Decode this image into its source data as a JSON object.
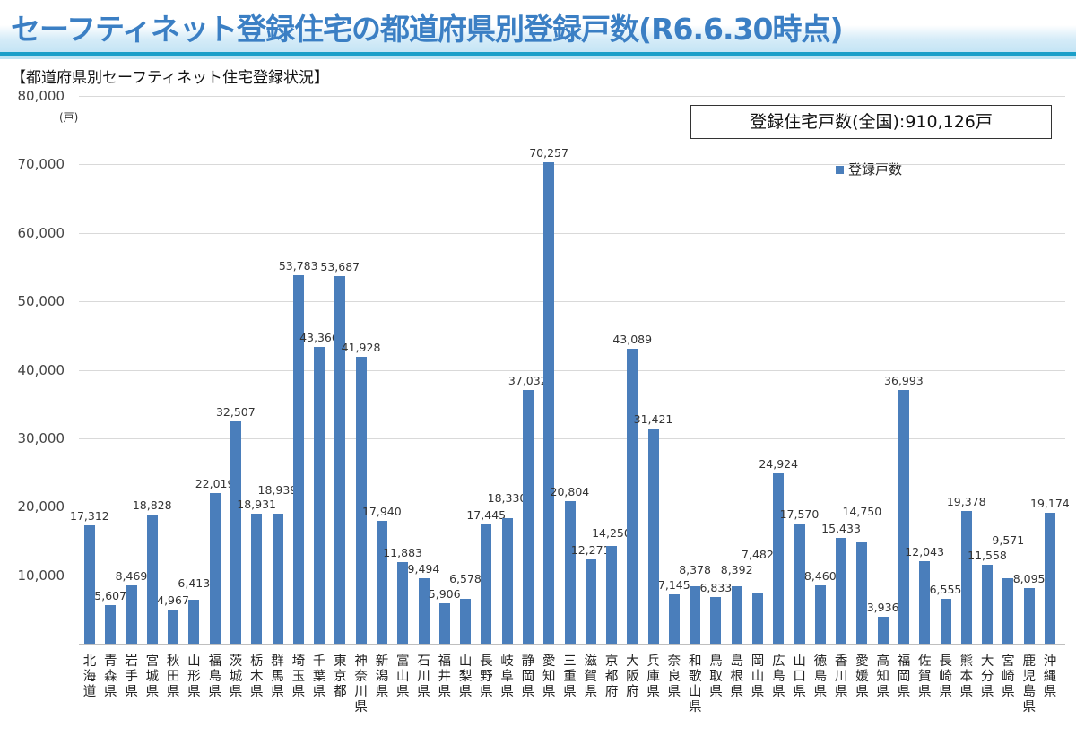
{
  "header": {
    "title": "セーフティネット登録住宅の都道府県別登録戸数(R6.6.30時点)",
    "subtitle": "【都道府県別セーフティネット住宅登録状況】"
  },
  "total_box": "登録住宅戸数(全国):910,126戸",
  "chart_data": {
    "type": "bar",
    "title": "",
    "ylabel": "(戸)",
    "ylim": [
      0,
      80000
    ],
    "yticks": [
      "80,000",
      "70,000",
      "60,000",
      "50,000",
      "40,000",
      "30,000",
      "20,000",
      "10,000"
    ],
    "ytick_values": [
      80000,
      70000,
      60000,
      50000,
      40000,
      30000,
      20000,
      10000
    ],
    "grid": true,
    "legend": {
      "position": "top-right",
      "entries": [
        "登録戸数"
      ]
    },
    "color": "#4a7ebb",
    "categories": [
      "北海道",
      "青森県",
      "岩手県",
      "宮城県",
      "秋田県",
      "山形県",
      "福島県",
      "茨城県",
      "栃木県",
      "群馬県",
      "埼玉県",
      "千葉県",
      "東京都",
      "神奈川県",
      "新潟県",
      "富山県",
      "石川県",
      "福井県",
      "山梨県",
      "長野県",
      "岐阜県",
      "静岡県",
      "愛知県",
      "三重県",
      "滋賀県",
      "京都府",
      "大阪府",
      "兵庫県",
      "奈良県",
      "和歌山県",
      "鳥取県",
      "島根県",
      "岡山県",
      "広島県",
      "山口県",
      "徳島県",
      "香川県",
      "愛媛県",
      "高知県",
      "福岡県",
      "佐賀県",
      "長崎県",
      "熊本県",
      "大分県",
      "宮崎県",
      "鹿児島県",
      "沖縄県"
    ],
    "series": [
      {
        "name": "登録戸数",
        "values": [
          17312,
          5607,
          8469,
          18828,
          4967,
          6413,
          22019,
          32507,
          18931,
          18939,
          53783,
          43366,
          53687,
          41928,
          17940,
          11883,
          9494,
          5906,
          6578,
          17445,
          18330,
          37032,
          70257,
          20804,
          12271,
          14250,
          43089,
          31421,
          7145,
          8378,
          6833,
          8392,
          7482,
          24924,
          17570,
          8460,
          15433,
          14750,
          3936,
          36993,
          12043,
          6555,
          19378,
          11558,
          9571,
          8095,
          19174
        ]
      }
    ],
    "data_labels": [
      "17,312",
      "5,607",
      "8,469",
      "18,828",
      "4,967",
      "6,413",
      "22,019",
      "32,507",
      "18,931",
      "18,939",
      "53,783",
      "43,366",
      "53,687",
      "41,928",
      "17,940",
      "11,883",
      "9,494",
      "5,906",
      "6,578",
      "17,445",
      "18,330",
      "37,032",
      "70,257",
      "20,804",
      "12,271",
      "14,250",
      "43,089",
      "31,421",
      "7,145",
      "8,378",
      "6,833",
      "8,392",
      "7,482",
      "24,924",
      "17,570",
      "8,460",
      "15,433",
      "14,750",
      "3,936",
      "36,993",
      "12,043",
      "6,555",
      "19,378",
      "11,558",
      "9,571",
      "8,095",
      "19,174"
    ]
  }
}
